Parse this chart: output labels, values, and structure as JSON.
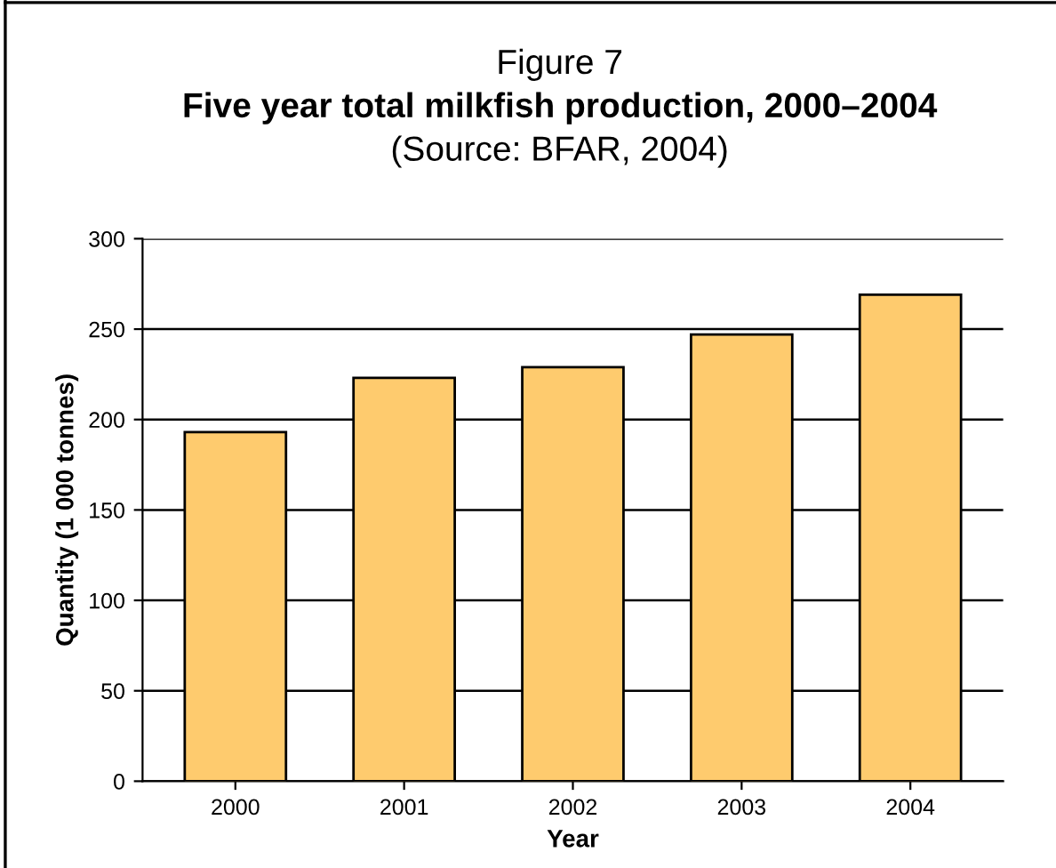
{
  "chart_data": {
    "type": "bar",
    "title": "Five year total milkfish production, 2000–2004",
    "subtitle": "(Source: BFAR, 2004)",
    "annotations": [
      "Figure 7"
    ],
    "xlabel": "Year",
    "ylabel": "Quantity (1 000 tonnes)",
    "categories": [
      "2000",
      "2001",
      "2002",
      "2003",
      "2004"
    ],
    "values": [
      193,
      223,
      229,
      247,
      269
    ],
    "color": "#fecb6e",
    "ylim": [
      0,
      300
    ],
    "yticks": [
      0,
      50,
      100,
      150,
      200,
      250,
      300
    ],
    "grid": "y",
    "legend": false
  }
}
